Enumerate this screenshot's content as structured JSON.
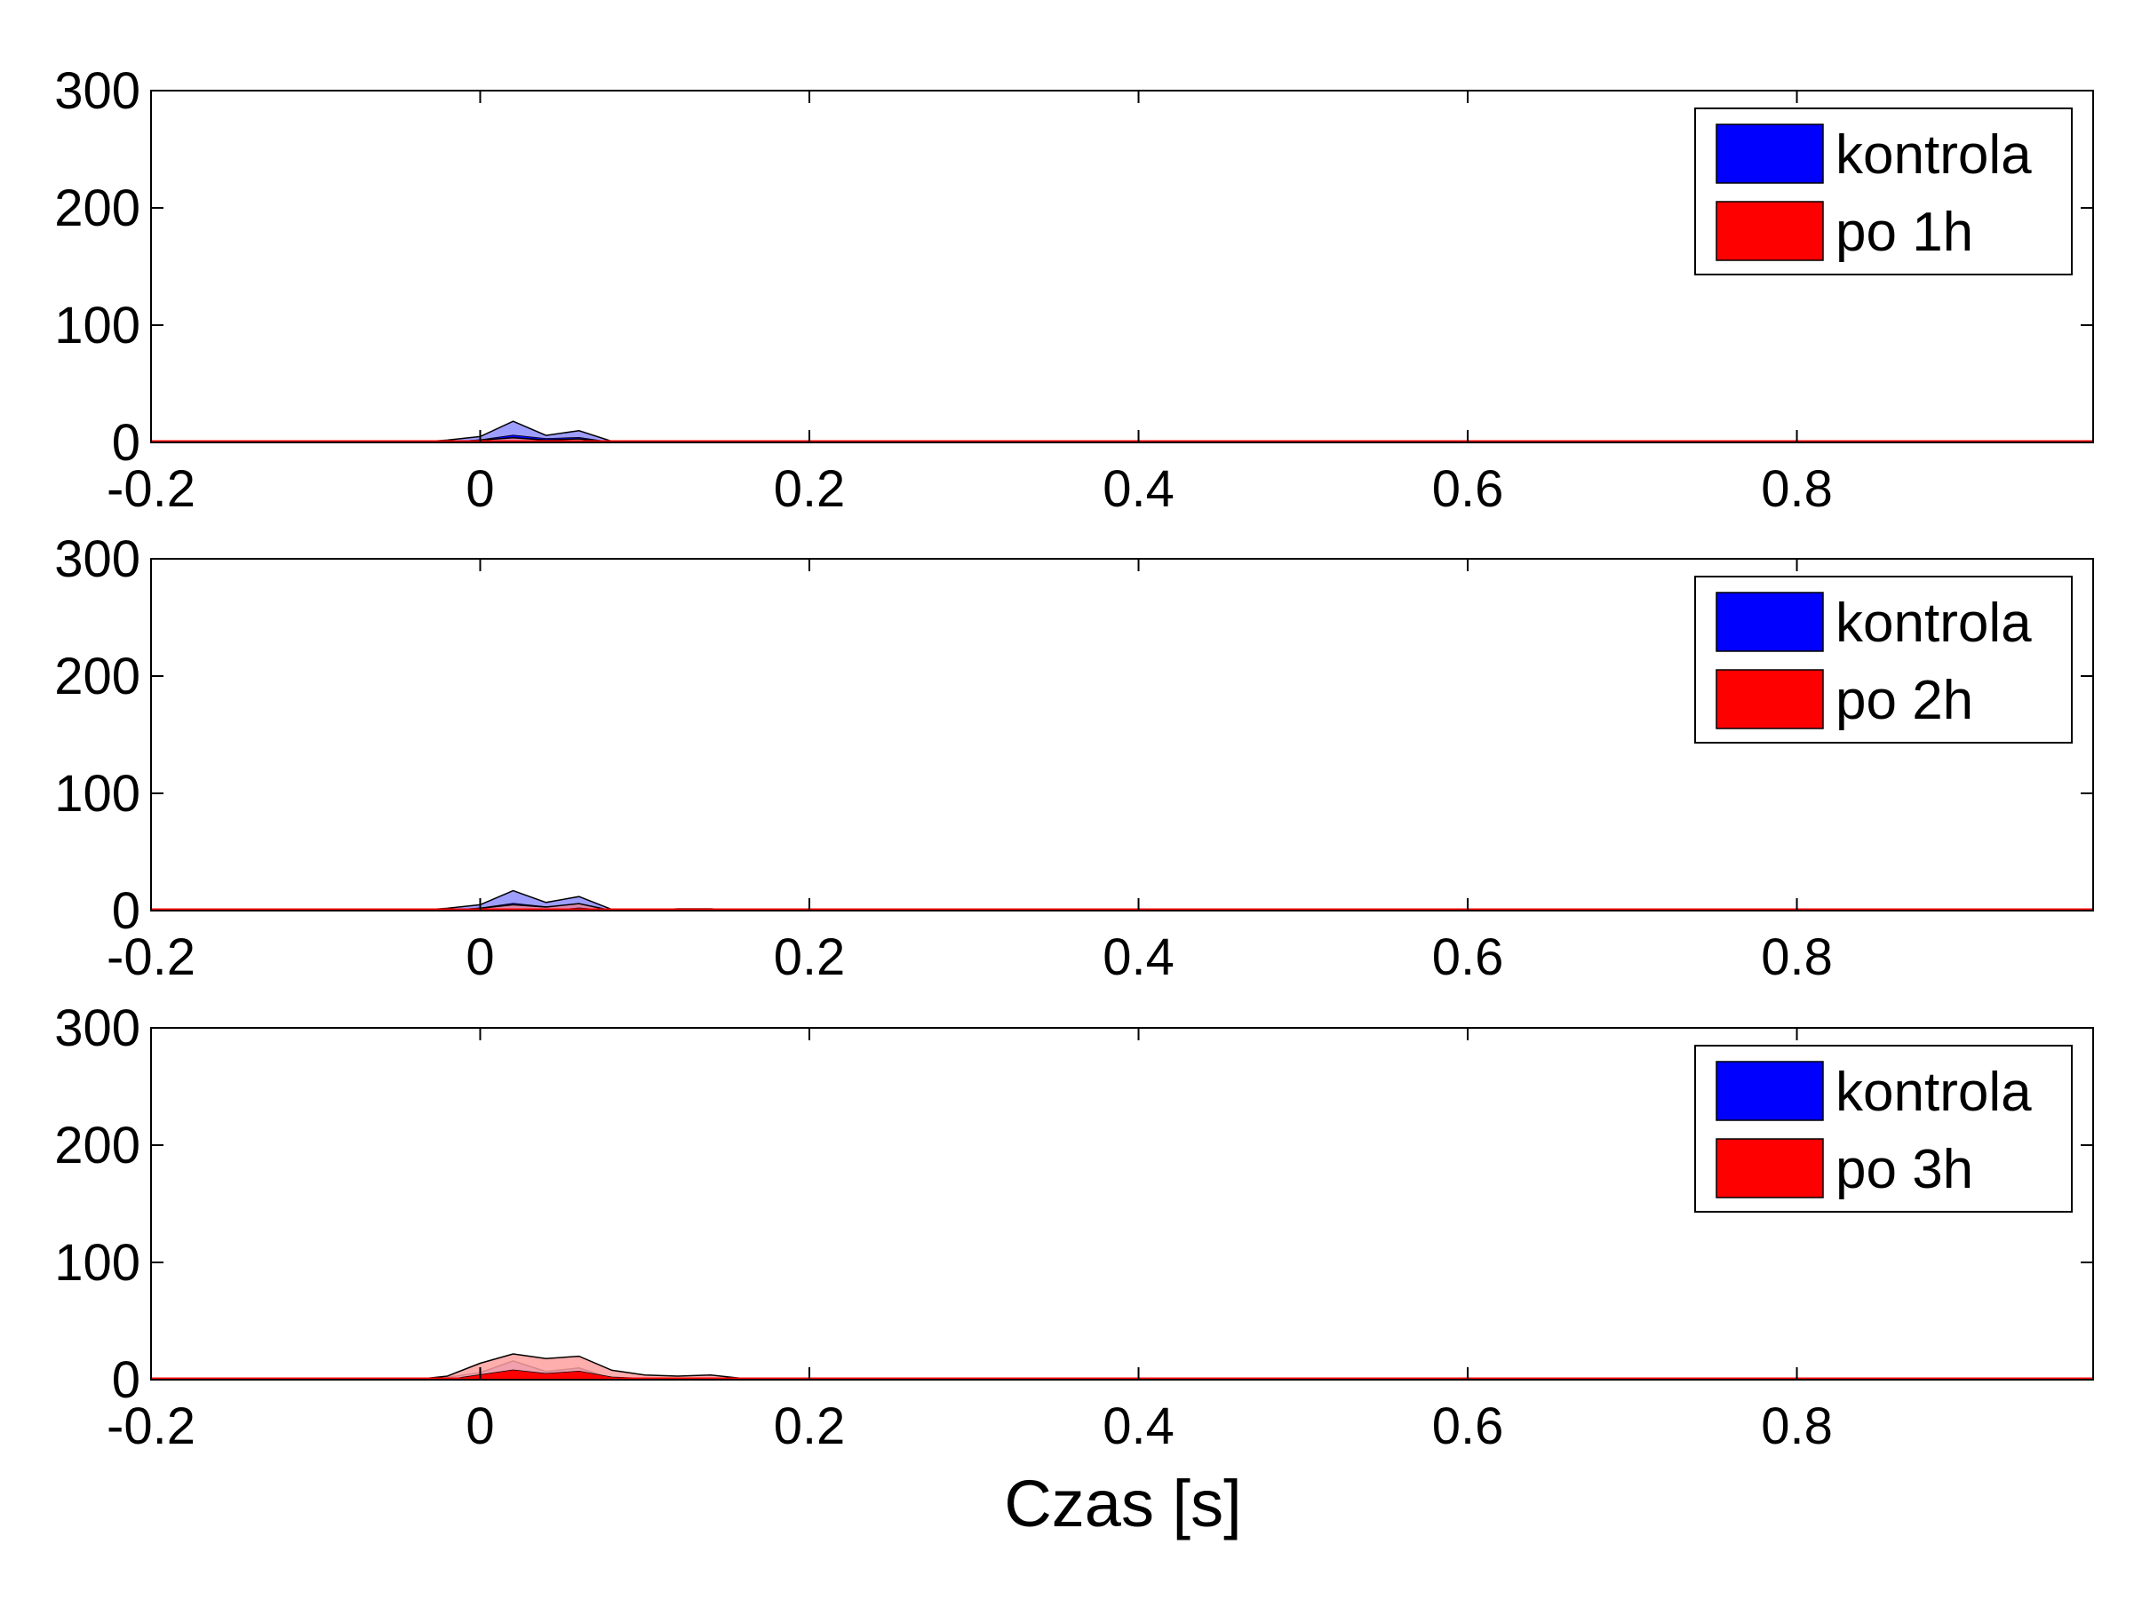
{
  "xlabel": "Czas [s]",
  "colors": {
    "kontrola": "#0000ff",
    "treated": "#ff0000",
    "kontrola_band": "#8d8dff",
    "treated_band": "#ffa0a0"
  },
  "chart_data": [
    {
      "type": "area",
      "xlim": [
        -0.2,
        0.98
      ],
      "ylim": [
        0,
        300
      ],
      "xticks": [
        "-0.2",
        "0",
        "0.2",
        "0.4",
        "0.6",
        "0.8"
      ],
      "yticks": [
        "0",
        "100",
        "200",
        "300"
      ],
      "legend_position": "top-right",
      "series": [
        {
          "name": "kontrola",
          "x": [
            -0.2,
            -0.04,
            -0.02,
            0.0,
            0.02,
            0.04,
            0.06,
            0.08,
            0.1,
            0.98
          ],
          "upper": [
            0,
            0,
            2,
            5,
            18,
            6,
            10,
            1,
            0,
            0
          ],
          "lower": [
            0,
            0,
            0,
            2,
            6,
            3,
            4,
            0,
            0,
            0
          ]
        },
        {
          "name": "po 1h",
          "x": [
            -0.2,
            -0.02,
            0.0,
            0.02,
            0.04,
            0.06,
            0.08,
            0.1,
            0.98
          ],
          "upper": [
            0,
            0,
            2,
            4,
            2,
            3,
            0,
            0,
            0
          ],
          "lower": [
            0,
            0,
            0,
            1,
            0,
            1,
            0,
            0,
            0
          ]
        }
      ]
    },
    {
      "type": "area",
      "xlim": [
        -0.2,
        0.98
      ],
      "ylim": [
        0,
        300
      ],
      "xticks": [
        "-0.2",
        "0",
        "0.2",
        "0.4",
        "0.6",
        "0.8"
      ],
      "yticks": [
        "0",
        "100",
        "200",
        "300"
      ],
      "legend_position": "top-right",
      "series": [
        {
          "name": "kontrola",
          "x": [
            -0.2,
            -0.04,
            -0.02,
            0.0,
            0.02,
            0.04,
            0.06,
            0.08,
            0.1,
            0.98
          ],
          "upper": [
            0,
            0,
            2,
            5,
            17,
            7,
            12,
            1,
            0,
            0
          ],
          "lower": [
            0,
            0,
            0,
            2,
            6,
            3,
            5,
            0,
            0,
            0
          ]
        },
        {
          "name": "po 2h",
          "x": [
            -0.2,
            -0.02,
            0.0,
            0.02,
            0.04,
            0.06,
            0.08,
            0.1,
            0.12,
            0.14,
            0.16,
            0.98
          ],
          "upper": [
            0,
            0,
            2,
            5,
            3,
            6,
            0,
            0,
            1.5,
            1.5,
            0,
            0
          ],
          "lower": [
            0,
            0,
            0,
            1,
            0,
            2,
            0,
            0,
            0,
            0,
            0,
            0
          ]
        }
      ]
    },
    {
      "type": "area",
      "xlim": [
        -0.2,
        0.98
      ],
      "ylim": [
        0,
        300
      ],
      "xticks": [
        "-0.2",
        "0",
        "0.2",
        "0.4",
        "0.6",
        "0.8"
      ],
      "yticks": [
        "0",
        "100",
        "200",
        "300"
      ],
      "legend_position": "top-right",
      "series": [
        {
          "name": "kontrola",
          "x": [
            -0.2,
            -0.04,
            -0.02,
            0.0,
            0.02,
            0.04,
            0.06,
            0.08,
            0.1,
            0.98
          ],
          "upper": [
            0,
            0,
            2,
            6,
            16,
            7,
            10,
            1,
            0,
            0
          ],
          "lower": [
            0,
            0,
            0,
            1,
            4,
            2,
            3,
            0,
            0,
            0
          ]
        },
        {
          "name": "po 3h",
          "x": [
            -0.2,
            -0.04,
            -0.02,
            0.0,
            0.02,
            0.04,
            0.06,
            0.08,
            0.1,
            0.12,
            0.14,
            0.16,
            0.18,
            0.98
          ],
          "upper": [
            0,
            0,
            3,
            14,
            22,
            18,
            20,
            8,
            4,
            3,
            4,
            1,
            0,
            0
          ],
          "lower": [
            0,
            0,
            0,
            4,
            8,
            5,
            7,
            2,
            1,
            1,
            1,
            0,
            0,
            0
          ]
        }
      ]
    }
  ]
}
